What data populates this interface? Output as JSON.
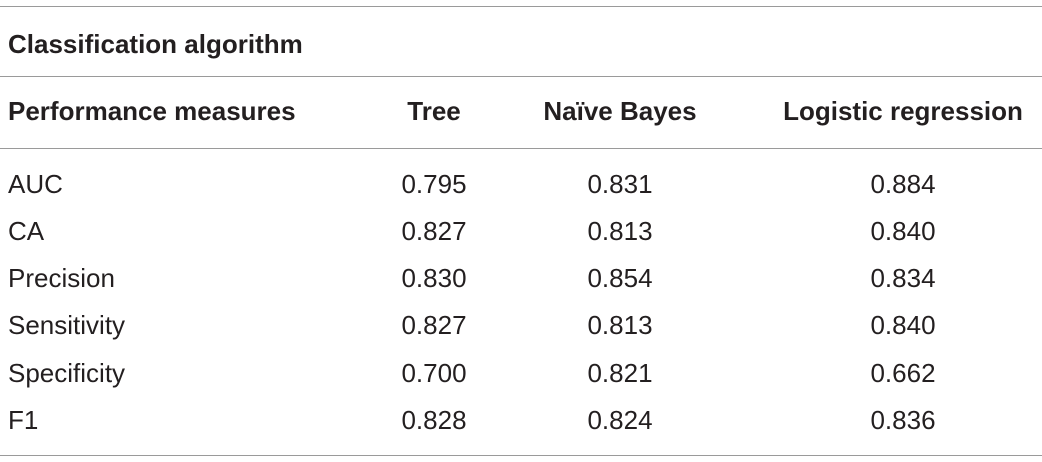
{
  "table": {
    "group_header": "Classification algorithm",
    "columns": [
      "Performance measures",
      "Tree",
      "Naïve Bayes",
      "Logistic regression"
    ],
    "rows": [
      [
        "AUC",
        "0.795",
        "0.831",
        "0.884"
      ],
      [
        "CA",
        "0.827",
        "0.813",
        "0.840"
      ],
      [
        "Precision",
        "0.830",
        "0.854",
        "0.834"
      ],
      [
        "Sensitivity",
        "0.827",
        "0.813",
        "0.840"
      ],
      [
        "Specificity",
        "0.700",
        "0.821",
        "0.662"
      ],
      [
        "F1",
        "0.828",
        "0.824",
        "0.836"
      ]
    ]
  }
}
